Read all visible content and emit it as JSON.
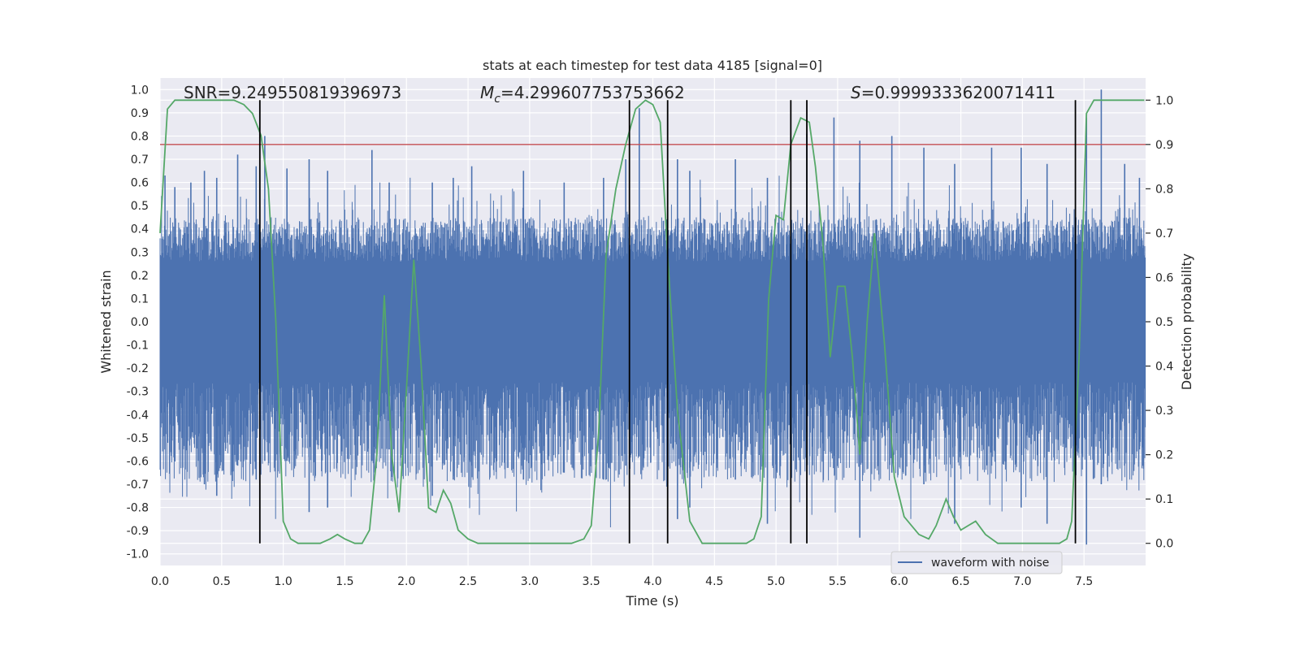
{
  "chart_data": {
    "type": "line",
    "title": "stats at each timestep for test data 4185 [signal=0]",
    "xlabel": "Time (s)",
    "ylabel": "Whitened strain",
    "y2label": "Detection probability",
    "xlim": [
      0.0,
      8.0
    ],
    "ylim": [
      -1.05,
      1.05
    ],
    "y2lim": [
      -0.05,
      1.05
    ],
    "x_ticks": [
      0.0,
      0.5,
      1.0,
      1.5,
      2.0,
      2.5,
      3.0,
      3.5,
      4.0,
      4.5,
      5.0,
      5.5,
      6.0,
      6.5,
      7.0,
      7.5
    ],
    "x_tick_labels": [
      "0.0",
      "0.5",
      "1.0",
      "1.5",
      "2.0",
      "2.5",
      "3.0",
      "3.5",
      "4.0",
      "4.5",
      "5.0",
      "5.5",
      "6.0",
      "6.5",
      "7.0",
      "7.5"
    ],
    "y_ticks": [
      1.0,
      0.9,
      0.8,
      0.7,
      0.6,
      0.5,
      0.4,
      0.3,
      0.2,
      0.1,
      0.0,
      -0.1,
      -0.2,
      -0.3,
      -0.4,
      -0.5,
      -0.6,
      -0.7,
      -0.8,
      -0.9,
      -1.0
    ],
    "y_tick_labels": [
      "1.0",
      "0.9",
      "0.8",
      "0.7",
      "0.6",
      "0.5",
      "0.4",
      "0.3",
      "0.2",
      "0.1",
      "0.0",
      "-0.1",
      "-0.2",
      "-0.3",
      "-0.4",
      "-0.5",
      "-0.6",
      "-0.7",
      "-0.8",
      "-0.9",
      "-1.0"
    ],
    "y2_ticks": [
      1.0,
      0.9,
      0.8,
      0.7,
      0.6,
      0.5,
      0.4,
      0.3,
      0.2,
      0.1,
      0.0
    ],
    "y2_tick_labels": [
      "1.0",
      "0.9",
      "0.8",
      "0.7",
      "0.6",
      "0.5",
      "0.4",
      "0.3",
      "0.2",
      "0.1",
      "0.0"
    ],
    "grid": true,
    "legend": {
      "position": "lower-right",
      "entries": [
        "waveform with noise"
      ]
    },
    "annotations": {
      "snr": "SNR=9.249550819396973",
      "mc_symbol": "M",
      "mc_sub": "c",
      "mc_value": "=4.299607753753662",
      "s_symbol": "S",
      "s_value": "=0.9999333620071411"
    },
    "threshold_line": {
      "y2": 0.9,
      "color": "#c44e52"
    },
    "vertical_lines": [
      0.81,
      3.81,
      4.12,
      5.12,
      5.25,
      7.43
    ],
    "vertical_lines_color": "#000000",
    "series": [
      {
        "name": "waveform with noise",
        "axis": "left",
        "color": "#4c72b0",
        "style": "noise-band",
        "typical_min": -0.43,
        "typical_max": 0.45,
        "peaks": [
          [
            0.04,
            0.63,
            -0.55
          ],
          [
            0.12,
            0.58,
            -0.6
          ],
          [
            0.25,
            0.6,
            -0.5
          ],
          [
            0.36,
            0.65,
            -0.7
          ],
          [
            0.46,
            0.62,
            -0.75
          ],
          [
            0.63,
            0.72,
            -0.62
          ],
          [
            0.78,
            0.67,
            -0.68
          ],
          [
            0.85,
            0.8,
            -0.6
          ],
          [
            1.03,
            0.66,
            -0.6
          ],
          [
            1.21,
            0.7,
            -0.82
          ],
          [
            1.36,
            0.65,
            -0.8
          ],
          [
            1.72,
            0.74,
            -0.6
          ],
          [
            1.86,
            0.6,
            -0.55
          ],
          [
            2.21,
            0.6,
            -0.75
          ],
          [
            2.38,
            0.62,
            -0.68
          ],
          [
            2.53,
            0.67,
            -0.62
          ],
          [
            2.95,
            0.65,
            -0.68
          ],
          [
            3.28,
            0.6,
            -0.65
          ],
          [
            3.6,
            0.62,
            -0.68
          ],
          [
            3.78,
            0.7,
            -0.62
          ],
          [
            3.89,
            0.92,
            -0.58
          ],
          [
            4.2,
            0.7,
            -0.85
          ],
          [
            4.3,
            0.65,
            -0.8
          ],
          [
            4.67,
            0.7,
            -0.68
          ],
          [
            4.93,
            0.62,
            -0.87
          ],
          [
            5.25,
            0.81,
            -0.62
          ],
          [
            5.47,
            0.88,
            -0.55
          ],
          [
            5.68,
            0.78,
            -0.93
          ],
          [
            5.94,
            0.8,
            -0.65
          ],
          [
            6.2,
            0.75,
            -0.7
          ],
          [
            6.45,
            0.68,
            -0.87
          ],
          [
            6.75,
            0.75,
            -0.62
          ],
          [
            6.99,
            0.75,
            -0.8
          ],
          [
            7.2,
            0.68,
            -0.87
          ],
          [
            7.52,
            0.88,
            -0.96
          ],
          [
            7.64,
            1.0,
            -0.7
          ],
          [
            7.83,
            0.68,
            -0.62
          ],
          [
            7.95,
            0.62,
            -0.55
          ]
        ]
      },
      {
        "name": "detection probability",
        "axis": "right",
        "color": "#55a868",
        "x": [
          0.0,
          0.06,
          0.12,
          0.2,
          0.3,
          0.4,
          0.5,
          0.6,
          0.68,
          0.75,
          0.82,
          0.88,
          0.94,
          1.0,
          1.06,
          1.12,
          1.2,
          1.3,
          1.38,
          1.44,
          1.5,
          1.58,
          1.64,
          1.7,
          1.76,
          1.82,
          1.88,
          1.94,
          2.0,
          2.06,
          2.12,
          2.18,
          2.24,
          2.3,
          2.36,
          2.42,
          2.5,
          2.58,
          2.66,
          2.76,
          3.0,
          3.2,
          3.34,
          3.44,
          3.5,
          3.56,
          3.62,
          3.7,
          3.78,
          3.86,
          3.94,
          4.0,
          4.06,
          4.12,
          4.2,
          4.3,
          4.4,
          4.48,
          4.56,
          4.66,
          4.76,
          4.82,
          4.88,
          4.94,
          5.0,
          5.06,
          5.12,
          5.2,
          5.27,
          5.32,
          5.38,
          5.44,
          5.5,
          5.56,
          5.62,
          5.68,
          5.74,
          5.8,
          5.88,
          5.96,
          6.04,
          6.1,
          6.16,
          6.24,
          6.3,
          6.38,
          6.44,
          6.5,
          6.56,
          6.62,
          6.7,
          6.8,
          7.0,
          7.2,
          7.3,
          7.36,
          7.4,
          7.46,
          7.52,
          7.58,
          7.7,
          7.85,
          7.99
        ],
        "y": [
          0.7,
          0.98,
          1.0,
          1.0,
          1.0,
          1.0,
          1.0,
          1.0,
          0.99,
          0.97,
          0.92,
          0.8,
          0.5,
          0.05,
          0.01,
          0.0,
          0.0,
          0.0,
          0.01,
          0.02,
          0.01,
          0.0,
          0.0,
          0.03,
          0.2,
          0.56,
          0.2,
          0.07,
          0.35,
          0.64,
          0.4,
          0.08,
          0.07,
          0.12,
          0.09,
          0.03,
          0.01,
          0.0,
          0.0,
          0.0,
          0.0,
          0.0,
          0.0,
          0.01,
          0.04,
          0.25,
          0.65,
          0.8,
          0.9,
          0.98,
          1.0,
          0.99,
          0.95,
          0.65,
          0.3,
          0.05,
          0.0,
          0.0,
          0.0,
          0.0,
          0.0,
          0.01,
          0.06,
          0.55,
          0.74,
          0.73,
          0.9,
          0.96,
          0.95,
          0.85,
          0.68,
          0.42,
          0.58,
          0.58,
          0.42,
          0.2,
          0.5,
          0.7,
          0.45,
          0.15,
          0.06,
          0.04,
          0.02,
          0.01,
          0.04,
          0.1,
          0.06,
          0.03,
          0.04,
          0.05,
          0.02,
          0.0,
          0.0,
          0.0,
          0.0,
          0.01,
          0.05,
          0.42,
          0.97,
          1.0,
          1.0,
          1.0,
          1.0
        ]
      }
    ]
  }
}
